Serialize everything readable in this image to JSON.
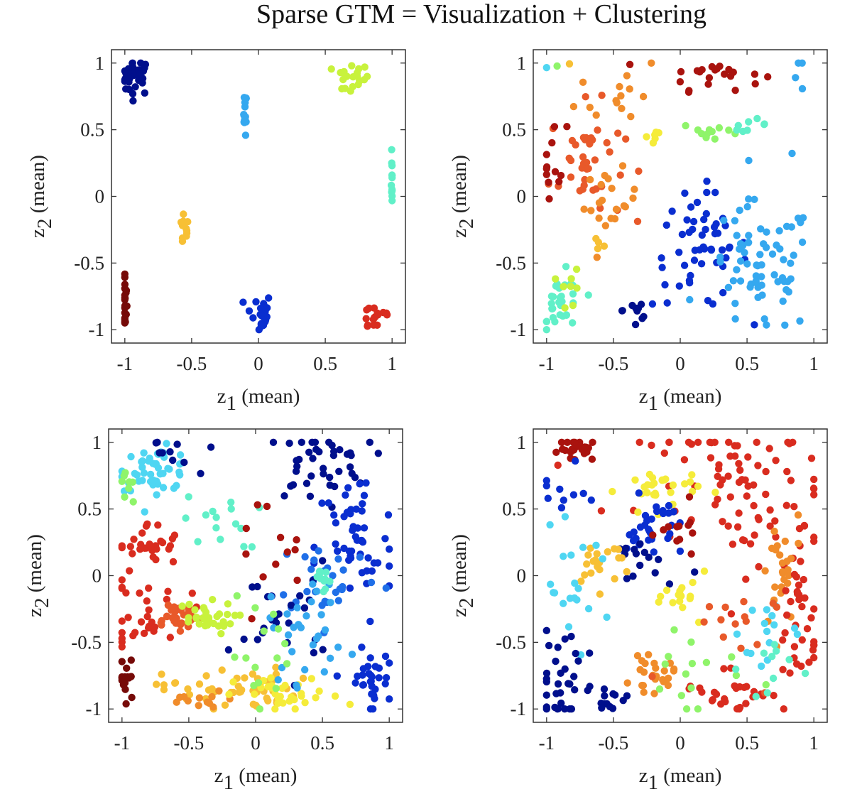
{
  "figure_title": "Sparse GTM = Visualization + Clustering",
  "axis_labels": {
    "x_main": "z",
    "x_sub": "1",
    "x_suffix": " (mean)",
    "y_main": "z",
    "y_sub": "2",
    "y_suffix": " (mean)"
  },
  "colors": {
    "c1": "#000f8c",
    "c2": "#0a2ed0",
    "c3": "#1f6fe8",
    "c4": "#35a8ef",
    "c5": "#4fd6f2",
    "c6": "#61f0c8",
    "c7": "#8ff46a",
    "c8": "#c8f23c",
    "c9": "#f5ec3a",
    "c10": "#f7c035",
    "c11": "#f08c2b",
    "c12": "#e8592a",
    "c13": "#d92c1f",
    "c14": "#a9130e",
    "c15": "#760a08"
  },
  "chart_data": [
    {
      "type": "scatter",
      "xlabel": "z1 (mean)",
      "ylabel": "z2 (mean)",
      "xlim": [
        -1.1,
        1.1
      ],
      "ylim": [
        -1.1,
        1.1
      ],
      "xticks": [
        -1,
        -0.5,
        0,
        0.5,
        1
      ],
      "yticks": [
        -1,
        -0.5,
        0,
        0.5,
        1
      ],
      "clusters": [
        {
          "color": "c1",
          "cx": -0.92,
          "cy": 0.9,
          "sx": 0.06,
          "sy": 0.07,
          "n": 35
        },
        {
          "color": "c4",
          "cx": -0.1,
          "cy": 0.62,
          "sx": 0.005,
          "sy": 0.08,
          "n": 15
        },
        {
          "color": "c8",
          "cx": 0.69,
          "cy": 0.88,
          "sx": 0.07,
          "sy": 0.06,
          "n": 20
        },
        {
          "color": "c6",
          "cx": 1.0,
          "cy": 0.1,
          "sx": 0.005,
          "sy": 0.1,
          "n": 12
        },
        {
          "color": "c10",
          "cx": -0.56,
          "cy": -0.25,
          "sx": 0.02,
          "sy": 0.07,
          "n": 12
        },
        {
          "color": "c15",
          "cx": -1.0,
          "cy": -0.8,
          "sx": 0.008,
          "sy": 0.1,
          "n": 22
        },
        {
          "color": "c2",
          "cx": 0.0,
          "cy": -0.88,
          "sx": 0.05,
          "sy": 0.08,
          "n": 22
        },
        {
          "color": "c13",
          "cx": 0.88,
          "cy": -0.9,
          "sx": 0.07,
          "sy": 0.06,
          "n": 16
        }
      ]
    },
    {
      "type": "scatter",
      "xlabel": "z1 (mean)",
      "ylabel": "z2 (mean)",
      "xlim": [
        -1.1,
        1.1
      ],
      "ylim": [
        -1.1,
        1.1
      ],
      "xticks": [
        -1,
        -0.5,
        0,
        0.5,
        1
      ],
      "yticks": [
        -1,
        -0.5,
        0,
        0.5,
        1
      ],
      "clusters": [
        {
          "color": "c5",
          "cx": -1.0,
          "cy": 0.96,
          "sx": 0.01,
          "sy": 0.01,
          "n": 1
        },
        {
          "color": "c7",
          "cx": -0.92,
          "cy": 0.99,
          "sx": 0.01,
          "sy": 0.01,
          "n": 1
        },
        {
          "color": "c10",
          "cx": -0.82,
          "cy": 0.99,
          "sx": 0.01,
          "sy": 0.01,
          "n": 1
        },
        {
          "color": "c11",
          "cx": -0.45,
          "cy": 0.8,
          "sx": 0.16,
          "sy": 0.15,
          "n": 14
        },
        {
          "color": "c14",
          "cx": 0.25,
          "cy": 0.92,
          "sx": 0.18,
          "sy": 0.06,
          "n": 22
        },
        {
          "color": "c12",
          "cx": -0.7,
          "cy": 0.25,
          "sx": 0.14,
          "sy": 0.22,
          "n": 40
        },
        {
          "color": "c14",
          "cx": -0.95,
          "cy": 0.28,
          "sx": 0.05,
          "sy": 0.14,
          "n": 12
        },
        {
          "color": "c11",
          "cx": -0.52,
          "cy": -0.05,
          "sx": 0.1,
          "sy": 0.12,
          "n": 20
        },
        {
          "color": "c9",
          "cx": -0.2,
          "cy": 0.45,
          "sx": 0.05,
          "sy": 0.04,
          "n": 6
        },
        {
          "color": "c7",
          "cx": 0.25,
          "cy": 0.48,
          "sx": 0.12,
          "sy": 0.04,
          "n": 12
        },
        {
          "color": "c6",
          "cx": 0.5,
          "cy": 0.54,
          "sx": 0.08,
          "sy": 0.02,
          "n": 8
        },
        {
          "color": "c4",
          "cx": 0.92,
          "cy": 0.9,
          "sx": 0.04,
          "sy": 0.08,
          "n": 4
        },
        {
          "color": "c4",
          "cx": 0.83,
          "cy": 0.34,
          "sx": 0.01,
          "sy": 0.01,
          "n": 1
        },
        {
          "color": "c2",
          "cx": 0.15,
          "cy": -0.4,
          "sx": 0.18,
          "sy": 0.22,
          "n": 55
        },
        {
          "color": "c1",
          "cx": -0.33,
          "cy": -0.85,
          "sx": 0.05,
          "sy": 0.1,
          "n": 10
        },
        {
          "color": "c4",
          "cx": 0.6,
          "cy": -0.55,
          "sx": 0.2,
          "sy": 0.25,
          "n": 70
        },
        {
          "color": "c6",
          "cx": -0.88,
          "cy": -0.82,
          "sx": 0.08,
          "sy": 0.12,
          "n": 30
        },
        {
          "color": "c8",
          "cx": -0.82,
          "cy": -0.7,
          "sx": 0.04,
          "sy": 0.08,
          "n": 8
        },
        {
          "color": "c10",
          "cx": -0.6,
          "cy": -0.35,
          "sx": 0.02,
          "sy": 0.03,
          "n": 4
        }
      ]
    },
    {
      "type": "scatter",
      "xlabel": "z1 (mean)",
      "ylabel": "z2 (mean)",
      "xlim": [
        -1.1,
        1.1
      ],
      "ylim": [
        -1.1,
        1.1
      ],
      "xticks": [
        -1,
        -0.5,
        0,
        0.5,
        1
      ],
      "yticks": [
        -1,
        -0.5,
        0,
        0.5,
        1
      ],
      "clusters": [
        {
          "color": "c5",
          "cx": -0.75,
          "cy": 0.8,
          "sx": 0.14,
          "sy": 0.08,
          "n": 50
        },
        {
          "color": "c7",
          "cx": -0.95,
          "cy": 0.7,
          "sx": 0.04,
          "sy": 0.08,
          "n": 8
        },
        {
          "color": "c1",
          "cx": -0.65,
          "cy": 0.9,
          "sx": 0.1,
          "sy": 0.08,
          "n": 10
        },
        {
          "color": "c1",
          "cx": 0.45,
          "cy": 0.85,
          "sx": 0.2,
          "sy": 0.15,
          "n": 40
        },
        {
          "color": "c2",
          "cx": 0.75,
          "cy": 0.2,
          "sx": 0.15,
          "sy": 0.3,
          "n": 50
        },
        {
          "color": "c3",
          "cx": 0.55,
          "cy": 0.0,
          "sx": 0.2,
          "sy": 0.15,
          "n": 30
        },
        {
          "color": "c13",
          "cx": -0.8,
          "cy": 0.2,
          "sx": 0.12,
          "sy": 0.1,
          "n": 30
        },
        {
          "color": "c13",
          "cx": -0.8,
          "cy": -0.25,
          "sx": 0.15,
          "sy": 0.15,
          "n": 30
        },
        {
          "color": "c12",
          "cx": -0.6,
          "cy": -0.3,
          "sx": 0.1,
          "sy": 0.06,
          "n": 30
        },
        {
          "color": "c8",
          "cx": -0.4,
          "cy": -0.32,
          "sx": 0.12,
          "sy": 0.06,
          "n": 30
        },
        {
          "color": "c6",
          "cx": -0.25,
          "cy": 0.4,
          "sx": 0.15,
          "sy": 0.1,
          "n": 15
        },
        {
          "color": "c10",
          "cx": -0.2,
          "cy": -0.85,
          "sx": 0.25,
          "sy": 0.08,
          "n": 50
        },
        {
          "color": "c11",
          "cx": -0.4,
          "cy": -0.95,
          "sx": 0.15,
          "sy": 0.04,
          "n": 12
        },
        {
          "color": "c9",
          "cx": 0.25,
          "cy": -0.9,
          "sx": 0.2,
          "sy": 0.07,
          "n": 30
        },
        {
          "color": "c15",
          "cx": -0.97,
          "cy": -0.8,
          "sx": 0.04,
          "sy": 0.1,
          "n": 15
        },
        {
          "color": "c1",
          "cx": 0.2,
          "cy": -0.3,
          "sx": 0.18,
          "sy": 0.2,
          "n": 25
        },
        {
          "color": "c4",
          "cx": 0.4,
          "cy": -0.4,
          "sx": 0.15,
          "sy": 0.2,
          "n": 30
        },
        {
          "color": "c2",
          "cx": 0.85,
          "cy": -0.8,
          "sx": 0.08,
          "sy": 0.12,
          "n": 30
        },
        {
          "color": "c6",
          "cx": 0.5,
          "cy": 0.0,
          "sx": 0.06,
          "sy": 0.05,
          "n": 12
        },
        {
          "color": "c7",
          "cx": 0.1,
          "cy": -0.6,
          "sx": 0.15,
          "sy": 0.2,
          "n": 15
        },
        {
          "color": "c14",
          "cx": 0.05,
          "cy": 0.2,
          "sx": 0.15,
          "sy": 0.2,
          "n": 12
        }
      ]
    },
    {
      "type": "scatter",
      "xlabel": "z1 (mean)",
      "ylabel": "z2 (mean)",
      "xlim": [
        -1.1,
        1.1
      ],
      "ylim": [
        -1.1,
        1.1
      ],
      "xticks": [
        -1,
        -0.5,
        0,
        0.5,
        1
      ],
      "yticks": [
        -1,
        -0.5,
        0,
        0.5,
        1
      ],
      "clusters": [
        {
          "color": "c14",
          "cx": -0.75,
          "cy": 0.95,
          "sx": 0.08,
          "sy": 0.05,
          "n": 25
        },
        {
          "color": "c13",
          "cx": 0.4,
          "cy": 0.8,
          "sx": 0.35,
          "sy": 0.18,
          "n": 60
        },
        {
          "color": "c13",
          "cx": 0.7,
          "cy": 0.3,
          "sx": 0.25,
          "sy": 0.2,
          "n": 30
        },
        {
          "color": "c9",
          "cx": -0.15,
          "cy": 0.65,
          "sx": 0.15,
          "sy": 0.08,
          "n": 30
        },
        {
          "color": "c2",
          "cx": -0.2,
          "cy": 0.35,
          "sx": 0.1,
          "sy": 0.12,
          "n": 30
        },
        {
          "color": "c1",
          "cx": -0.3,
          "cy": 0.1,
          "sx": 0.15,
          "sy": 0.1,
          "n": 15
        },
        {
          "color": "c2",
          "cx": -0.9,
          "cy": 0.6,
          "sx": 0.1,
          "sy": 0.1,
          "n": 10
        },
        {
          "color": "c10",
          "cx": -0.6,
          "cy": 0.1,
          "sx": 0.12,
          "sy": 0.1,
          "n": 20
        },
        {
          "color": "c5",
          "cx": -0.8,
          "cy": -0.1,
          "sx": 0.15,
          "sy": 0.2,
          "n": 20
        },
        {
          "color": "c9",
          "cx": 0.05,
          "cy": -0.15,
          "sx": 0.08,
          "sy": 0.08,
          "n": 15
        },
        {
          "color": "c14",
          "cx": 0.0,
          "cy": 0.3,
          "sx": 0.08,
          "sy": 0.1,
          "n": 12
        },
        {
          "color": "c11",
          "cx": 0.75,
          "cy": 0.0,
          "sx": 0.08,
          "sy": 0.25,
          "n": 25
        },
        {
          "color": "c13",
          "cx": 0.9,
          "cy": -0.4,
          "sx": 0.1,
          "sy": 0.3,
          "n": 30
        },
        {
          "color": "c5",
          "cx": 0.65,
          "cy": -0.4,
          "sx": 0.1,
          "sy": 0.2,
          "n": 15
        },
        {
          "color": "c11",
          "cx": -0.2,
          "cy": -0.75,
          "sx": 0.08,
          "sy": 0.06,
          "n": 25
        },
        {
          "color": "c1",
          "cx": -0.9,
          "cy": -0.75,
          "sx": 0.1,
          "sy": 0.2,
          "n": 30
        },
        {
          "color": "c1",
          "cx": -0.55,
          "cy": -0.92,
          "sx": 0.08,
          "sy": 0.05,
          "n": 15
        },
        {
          "color": "c13",
          "cx": 0.4,
          "cy": -0.85,
          "sx": 0.2,
          "sy": 0.1,
          "n": 30
        },
        {
          "color": "c7",
          "cx": 0.1,
          "cy": -0.7,
          "sx": 0.25,
          "sy": 0.2,
          "n": 15
        },
        {
          "color": "c12",
          "cx": 0.3,
          "cy": -0.45,
          "sx": 0.2,
          "sy": 0.2,
          "n": 15
        },
        {
          "color": "c6",
          "cx": 0.65,
          "cy": -0.7,
          "sx": 0.1,
          "sy": 0.12,
          "n": 10
        }
      ]
    }
  ]
}
